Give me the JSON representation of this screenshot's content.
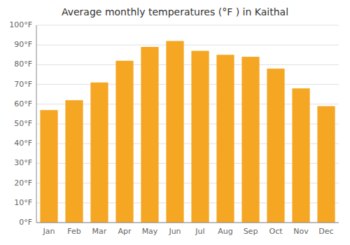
{
  "chart_data": {
    "type": "bar",
    "title": "Average monthly temperatures (°F ) in Kaithal",
    "categories": [
      "Jan",
      "Feb",
      "Mar",
      "Apr",
      "May",
      "Jun",
      "Jul",
      "Aug",
      "Sep",
      "Oct",
      "Nov",
      "Dec"
    ],
    "values": [
      57,
      62,
      71,
      82,
      89,
      92,
      87,
      85,
      84,
      78,
      68,
      59
    ],
    "color": "#F5A623",
    "ylim": [
      0,
      100
    ],
    "yticks": [
      {
        "value": 0,
        "label": "0°F"
      },
      {
        "value": 10,
        "label": "10°F"
      },
      {
        "value": 20,
        "label": "20°F"
      },
      {
        "value": 30,
        "label": "30°F"
      },
      {
        "value": 40,
        "label": "40°F"
      },
      {
        "value": 50,
        "label": "50°F"
      },
      {
        "value": 60,
        "label": "60°F"
      },
      {
        "value": 70,
        "label": "70°F"
      },
      {
        "value": 80,
        "label": "80°F"
      },
      {
        "value": 90,
        "label": "90°F"
      },
      {
        "value": 100,
        "label": "100°F"
      }
    ],
    "grid": true
  }
}
